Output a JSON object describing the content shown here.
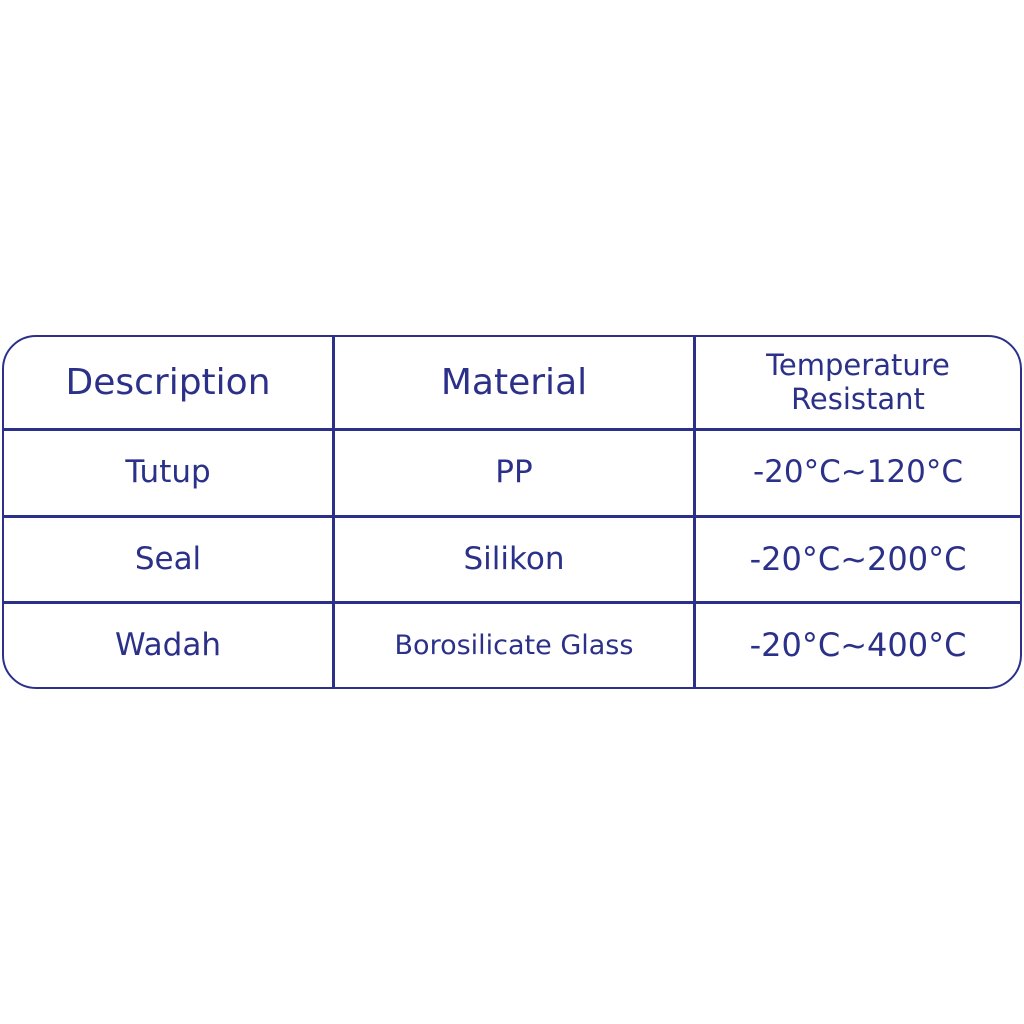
{
  "line_color": "#2b3188",
  "header": [
    "Description",
    "Material",
    "Temperature Resistant"
  ],
  "header_temp_lines": [
    "Temperature",
    "Resistant"
  ],
  "rows": [
    [
      "Tutup",
      "PP",
      "-20°C~120°C"
    ],
    [
      "Seal",
      "Silikon",
      "-20°C~200°C"
    ],
    [
      "Wadah",
      "Borosilicate Glass",
      "-20°C~400°C"
    ]
  ]
}
